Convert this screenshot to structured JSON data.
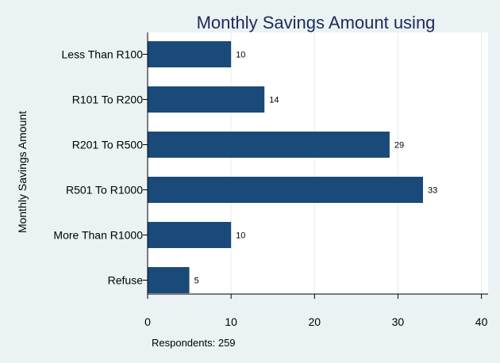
{
  "chart_data": {
    "type": "bar",
    "orientation": "horizontal",
    "title": "Monthly Savings Amount using",
    "ylabel": "Monthly Savings Amount",
    "xlabel": "",
    "note": "Respondents: 259",
    "categories": [
      "Less Than R100",
      "R101 To R200",
      "R201 To R500",
      "R501 To R1000",
      "More Than R1000",
      "Refuse"
    ],
    "values": [
      10,
      14,
      29,
      33,
      10,
      5
    ],
    "value_labels": [
      "10",
      "14",
      "29",
      "33",
      "10",
      "5"
    ],
    "xlim": [
      0,
      40
    ],
    "xticks": [
      0,
      10,
      20,
      30,
      40
    ],
    "xtick_labels": [
      "0",
      "10",
      "20",
      "30",
      "40"
    ],
    "grid": "vertical",
    "legend": "none",
    "colors": {
      "bar": "#1a4a7a",
      "background": "#eaf2f3",
      "plot_background": "#ffffff",
      "gridline": "#e4ecee",
      "title": "#1b2b5a"
    }
  }
}
